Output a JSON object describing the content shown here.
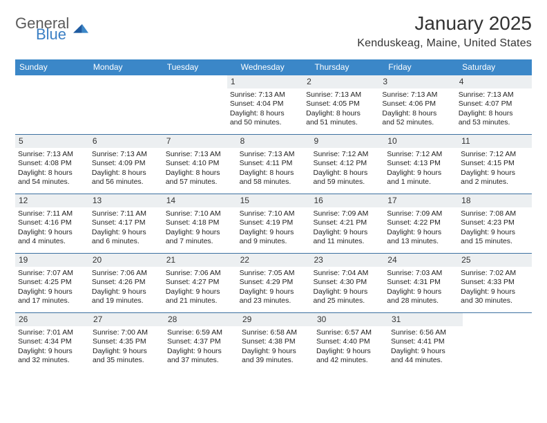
{
  "brand": {
    "part1": "General",
    "part2": "Blue"
  },
  "title": {
    "month": "January 2025",
    "location": "Kenduskeag, Maine, United States"
  },
  "colors": {
    "header_bar": "#3b87c8",
    "daynum_bg": "#eceff1",
    "text": "#333333",
    "row_border": "#3b6fa0",
    "logo_gray": "#5b5b5b",
    "logo_blue": "#3b7fc4"
  },
  "dow": [
    "Sunday",
    "Monday",
    "Tuesday",
    "Wednesday",
    "Thursday",
    "Friday",
    "Saturday"
  ],
  "weeks": [
    [
      null,
      null,
      null,
      {
        "n": "1",
        "sr": "7:13 AM",
        "ss": "4:04 PM",
        "dh": "8",
        "dm": "50"
      },
      {
        "n": "2",
        "sr": "7:13 AM",
        "ss": "4:05 PM",
        "dh": "8",
        "dm": "51"
      },
      {
        "n": "3",
        "sr": "7:13 AM",
        "ss": "4:06 PM",
        "dh": "8",
        "dm": "52"
      },
      {
        "n": "4",
        "sr": "7:13 AM",
        "ss": "4:07 PM",
        "dh": "8",
        "dm": "53"
      }
    ],
    [
      {
        "n": "5",
        "sr": "7:13 AM",
        "ss": "4:08 PM",
        "dh": "8",
        "dm": "54"
      },
      {
        "n": "6",
        "sr": "7:13 AM",
        "ss": "4:09 PM",
        "dh": "8",
        "dm": "56"
      },
      {
        "n": "7",
        "sr": "7:13 AM",
        "ss": "4:10 PM",
        "dh": "8",
        "dm": "57"
      },
      {
        "n": "8",
        "sr": "7:13 AM",
        "ss": "4:11 PM",
        "dh": "8",
        "dm": "58"
      },
      {
        "n": "9",
        "sr": "7:12 AM",
        "ss": "4:12 PM",
        "dh": "8",
        "dm": "59"
      },
      {
        "n": "10",
        "sr": "7:12 AM",
        "ss": "4:13 PM",
        "dh": "9",
        "dm": "1"
      },
      {
        "n": "11",
        "sr": "7:12 AM",
        "ss": "4:15 PM",
        "dh": "9",
        "dm": "2"
      }
    ],
    [
      {
        "n": "12",
        "sr": "7:11 AM",
        "ss": "4:16 PM",
        "dh": "9",
        "dm": "4"
      },
      {
        "n": "13",
        "sr": "7:11 AM",
        "ss": "4:17 PM",
        "dh": "9",
        "dm": "6"
      },
      {
        "n": "14",
        "sr": "7:10 AM",
        "ss": "4:18 PM",
        "dh": "9",
        "dm": "7"
      },
      {
        "n": "15",
        "sr": "7:10 AM",
        "ss": "4:19 PM",
        "dh": "9",
        "dm": "9"
      },
      {
        "n": "16",
        "sr": "7:09 AM",
        "ss": "4:21 PM",
        "dh": "9",
        "dm": "11"
      },
      {
        "n": "17",
        "sr": "7:09 AM",
        "ss": "4:22 PM",
        "dh": "9",
        "dm": "13"
      },
      {
        "n": "18",
        "sr": "7:08 AM",
        "ss": "4:23 PM",
        "dh": "9",
        "dm": "15"
      }
    ],
    [
      {
        "n": "19",
        "sr": "7:07 AM",
        "ss": "4:25 PM",
        "dh": "9",
        "dm": "17"
      },
      {
        "n": "20",
        "sr": "7:06 AM",
        "ss": "4:26 PM",
        "dh": "9",
        "dm": "19"
      },
      {
        "n": "21",
        "sr": "7:06 AM",
        "ss": "4:27 PM",
        "dh": "9",
        "dm": "21"
      },
      {
        "n": "22",
        "sr": "7:05 AM",
        "ss": "4:29 PM",
        "dh": "9",
        "dm": "23"
      },
      {
        "n": "23",
        "sr": "7:04 AM",
        "ss": "4:30 PM",
        "dh": "9",
        "dm": "25"
      },
      {
        "n": "24",
        "sr": "7:03 AM",
        "ss": "4:31 PM",
        "dh": "9",
        "dm": "28"
      },
      {
        "n": "25",
        "sr": "7:02 AM",
        "ss": "4:33 PM",
        "dh": "9",
        "dm": "30"
      }
    ],
    [
      {
        "n": "26",
        "sr": "7:01 AM",
        "ss": "4:34 PM",
        "dh": "9",
        "dm": "32"
      },
      {
        "n": "27",
        "sr": "7:00 AM",
        "ss": "4:35 PM",
        "dh": "9",
        "dm": "35"
      },
      {
        "n": "28",
        "sr": "6:59 AM",
        "ss": "4:37 PM",
        "dh": "9",
        "dm": "37"
      },
      {
        "n": "29",
        "sr": "6:58 AM",
        "ss": "4:38 PM",
        "dh": "9",
        "dm": "39"
      },
      {
        "n": "30",
        "sr": "6:57 AM",
        "ss": "4:40 PM",
        "dh": "9",
        "dm": "42"
      },
      {
        "n": "31",
        "sr": "6:56 AM",
        "ss": "4:41 PM",
        "dh": "9",
        "dm": "44"
      },
      null
    ]
  ]
}
